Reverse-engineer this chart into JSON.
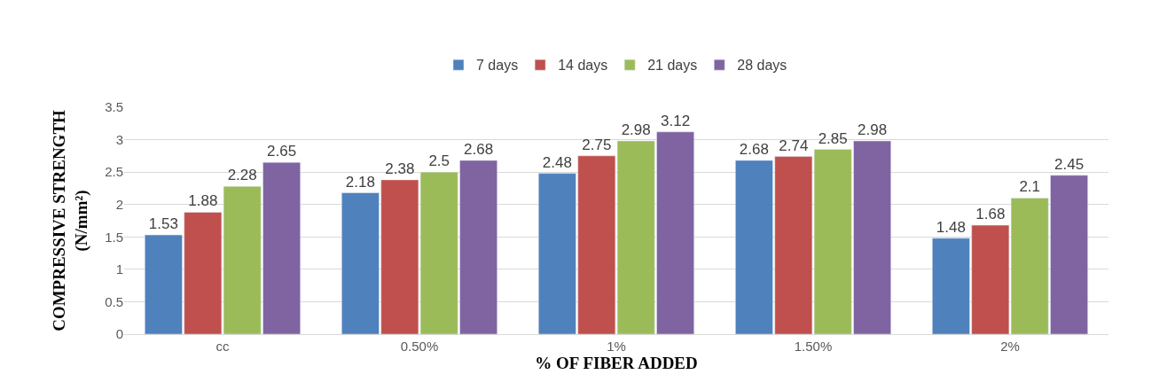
{
  "chart_data": {
    "type": "bar",
    "xlabel": "% OF FIBER ADDED",
    "ylabel": "COMPRESSIVE STRENGTH\n(N/mm²)",
    "categories": [
      "cc",
      "0.50%",
      "1%",
      "1.50%",
      "2%"
    ],
    "series": [
      {
        "name": "7 days",
        "color": "#4f81bd",
        "values": [
          1.53,
          2.18,
          2.48,
          2.68,
          1.48
        ]
      },
      {
        "name": "14 days",
        "color": "#c0504d",
        "values": [
          1.88,
          2.38,
          2.75,
          2.74,
          1.68
        ]
      },
      {
        "name": "21 days",
        "color": "#9bbb59",
        "values": [
          2.28,
          2.5,
          2.98,
          2.85,
          2.1
        ]
      },
      {
        "name": "28 days",
        "color": "#8064a2",
        "values": [
          2.65,
          2.68,
          3.12,
          2.98,
          2.45
        ]
      }
    ],
    "ylim": [
      0,
      3.5
    ],
    "yticks": [
      0,
      0.5,
      1,
      1.5,
      2,
      2.5,
      3,
      3.5
    ],
    "grid": "y",
    "legend": "top",
    "data_labels": true
  }
}
